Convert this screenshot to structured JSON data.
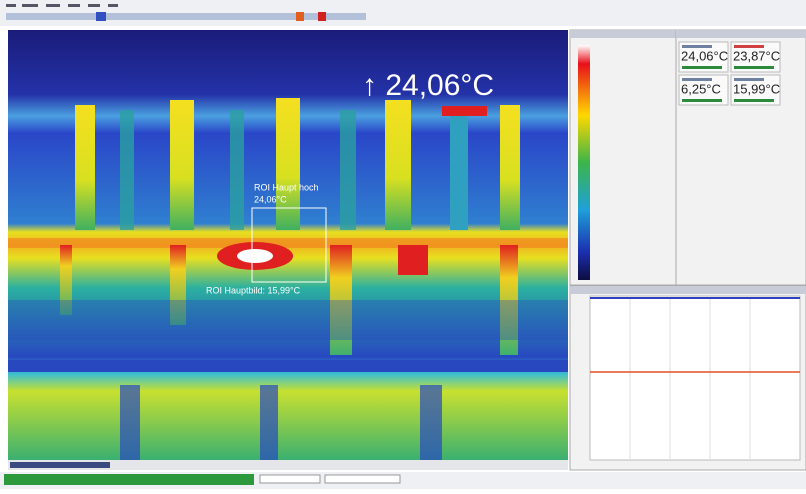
{
  "image": {
    "overlay_max": "↑ 24,06°C",
    "roi_label_top": "ROI Haupt hoch",
    "roi_value_top": "24,06°C",
    "roi_label_bottom": "ROI Hauptbild: 15,99°C"
  },
  "readouts": [
    "24,06°C",
    "23,87°C",
    "6,25°C",
    "15,99°C"
  ]
}
